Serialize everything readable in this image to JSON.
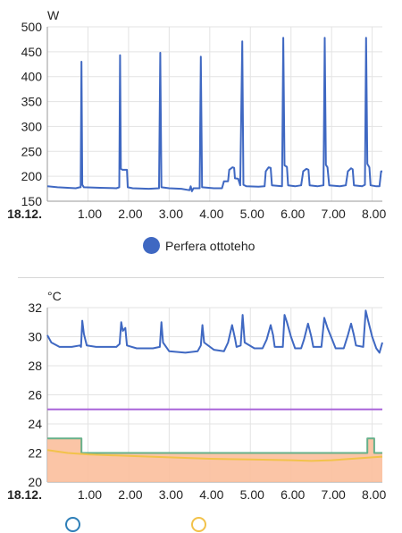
{
  "chart_data": [
    {
      "type": "line",
      "ylabel": "W",
      "ylim": [
        150,
        500
      ],
      "yticks": [
        150,
        200,
        250,
        300,
        350,
        400,
        450,
        500
      ],
      "xlim": [
        0,
        8.25
      ],
      "x_ticks": [
        {
          "x": 0,
          "label": "18.12.",
          "bold": true
        },
        {
          "x": 1,
          "label": "1.00"
        },
        {
          "x": 2,
          "label": "2.00"
        },
        {
          "x": 3,
          "label": "3.00"
        },
        {
          "x": 4,
          "label": "4.00"
        },
        {
          "x": 5,
          "label": "5.00"
        },
        {
          "x": 6,
          "label": "6.00"
        },
        {
          "x": 7,
          "label": "7.00"
        },
        {
          "x": 8,
          "label": "8.00"
        }
      ],
      "grid": true,
      "legend_position": "bottom",
      "series": [
        {
          "name": "Perfera ottoteho",
          "color": "#3f68c2",
          "points": [
            [
              0,
              180
            ],
            [
              0.25,
              178
            ],
            [
              0.5,
              177
            ],
            [
              0.7,
              176
            ],
            [
              0.8,
              178
            ],
            [
              0.82,
              178
            ],
            [
              0.84,
              430
            ],
            [
              0.86,
              183
            ],
            [
              0.9,
              178
            ],
            [
              1.3,
              177
            ],
            [
              1.7,
              176
            ],
            [
              1.77,
              178
            ],
            [
              1.79,
              443
            ],
            [
              1.81,
              215
            ],
            [
              1.85,
              213
            ],
            [
              1.96,
              213
            ],
            [
              1.98,
              178
            ],
            [
              2.1,
              176
            ],
            [
              2.5,
              175
            ],
            [
              2.75,
              176
            ],
            [
              2.78,
              448
            ],
            [
              2.81,
              178
            ],
            [
              3.0,
              176
            ],
            [
              3.3,
              175
            ],
            [
              3.5,
              172
            ],
            [
              3.53,
              180
            ],
            [
              3.56,
              170
            ],
            [
              3.6,
              176
            ],
            [
              3.75,
              176
            ],
            [
              3.78,
              440
            ],
            [
              3.81,
              178
            ],
            [
              4.1,
              176
            ],
            [
              4.3,
              176
            ],
            [
              4.35,
              190
            ],
            [
              4.45,
              190
            ],
            [
              4.48,
              213
            ],
            [
              4.56,
              218
            ],
            [
              4.6,
              217
            ],
            [
              4.62,
              196
            ],
            [
              4.7,
              195
            ],
            [
              4.75,
              182
            ],
            [
              4.8,
              471
            ],
            [
              4.83,
              183
            ],
            [
              4.9,
              180
            ],
            [
              5.2,
              179
            ],
            [
              5.35,
              180
            ],
            [
              5.38,
              210
            ],
            [
              5.45,
              218
            ],
            [
              5.5,
              217
            ],
            [
              5.53,
              182
            ],
            [
              5.78,
              180
            ],
            [
              5.81,
              478
            ],
            [
              5.84,
              222
            ],
            [
              5.9,
              219
            ],
            [
              5.93,
              182
            ],
            [
              6.1,
              180
            ],
            [
              6.25,
              182
            ],
            [
              6.3,
              210
            ],
            [
              6.38,
              215
            ],
            [
              6.43,
              213
            ],
            [
              6.46,
              182
            ],
            [
              6.65,
              180
            ],
            [
              6.8,
              182
            ],
            [
              6.83,
              478
            ],
            [
              6.86,
              223
            ],
            [
              6.9,
              218
            ],
            [
              6.94,
              182
            ],
            [
              7.2,
              180
            ],
            [
              7.35,
              182
            ],
            [
              7.4,
              210
            ],
            [
              7.48,
              216
            ],
            [
              7.52,
              214
            ],
            [
              7.55,
              182
            ],
            [
              7.75,
              180
            ],
            [
              7.82,
              183
            ],
            [
              7.85,
              478
            ],
            [
              7.88,
              225
            ],
            [
              7.93,
              218
            ],
            [
              7.96,
              182
            ],
            [
              8.1,
              180
            ],
            [
              8.18,
              180
            ],
            [
              8.22,
              210
            ],
            [
              8.25,
              210
            ]
          ]
        }
      ]
    },
    {
      "type": "line",
      "ylabel": "°C",
      "ylim": [
        20,
        32
      ],
      "yticks": [
        20,
        22,
        24,
        26,
        28,
        30,
        32
      ],
      "xlim": [
        0,
        8.25
      ],
      "x_ticks": [
        {
          "x": 0,
          "label": "18.12.",
          "bold": true
        },
        {
          "x": 1,
          "label": "1.00"
        },
        {
          "x": 2,
          "label": "2.00"
        },
        {
          "x": 3,
          "label": "3.00"
        },
        {
          "x": 4,
          "label": "4.00"
        },
        {
          "x": 5,
          "label": "5.00"
        },
        {
          "x": 6,
          "label": "6.00"
        },
        {
          "x": 7,
          "label": "7.00"
        },
        {
          "x": 8,
          "label": "8.00"
        }
      ],
      "grid": true,
      "legend_position": "bottom",
      "series": [
        {
          "color": "#3f68c2",
          "points": [
            [
              0,
              30.1
            ],
            [
              0.1,
              29.6
            ],
            [
              0.3,
              29.3
            ],
            [
              0.6,
              29.3
            ],
            [
              0.8,
              29.4
            ],
            [
              0.83,
              29.3
            ],
            [
              0.86,
              31.1
            ],
            [
              0.9,
              30.2
            ],
            [
              0.97,
              29.4
            ],
            [
              1.2,
              29.3
            ],
            [
              1.7,
              29.3
            ],
            [
              1.78,
              29.5
            ],
            [
              1.82,
              31.0
            ],
            [
              1.86,
              30.4
            ],
            [
              1.92,
              30.6
            ],
            [
              1.96,
              29.4
            ],
            [
              2.2,
              29.2
            ],
            [
              2.6,
              29.2
            ],
            [
              2.77,
              29.3
            ],
            [
              2.81,
              31.0
            ],
            [
              2.85,
              29.6
            ],
            [
              3.0,
              29.0
            ],
            [
              3.4,
              28.9
            ],
            [
              3.7,
              29.0
            ],
            [
              3.78,
              29.4
            ],
            [
              3.82,
              30.8
            ],
            [
              3.86,
              29.6
            ],
            [
              4.1,
              29.1
            ],
            [
              4.35,
              29.0
            ],
            [
              4.45,
              29.6
            ],
            [
              4.55,
              30.8
            ],
            [
              4.62,
              29.9
            ],
            [
              4.66,
              29.3
            ],
            [
              4.76,
              29.4
            ],
            [
              4.81,
              31.5
            ],
            [
              4.86,
              29.6
            ],
            [
              5.1,
              29.2
            ],
            [
              5.3,
              29.2
            ],
            [
              5.4,
              29.8
            ],
            [
              5.5,
              30.8
            ],
            [
              5.56,
              30.1
            ],
            [
              5.6,
              29.3
            ],
            [
              5.8,
              29.3
            ],
            [
              5.84,
              31.5
            ],
            [
              5.9,
              31.0
            ],
            [
              6.0,
              30.0
            ],
            [
              6.1,
              29.2
            ],
            [
              6.25,
              29.2
            ],
            [
              6.32,
              29.8
            ],
            [
              6.42,
              30.9
            ],
            [
              6.5,
              30.0
            ],
            [
              6.55,
              29.3
            ],
            [
              6.75,
              29.3
            ],
            [
              6.82,
              31.3
            ],
            [
              6.9,
              30.6
            ],
            [
              7.0,
              29.9
            ],
            [
              7.1,
              29.2
            ],
            [
              7.3,
              29.2
            ],
            [
              7.4,
              30.1
            ],
            [
              7.48,
              30.9
            ],
            [
              7.55,
              30.1
            ],
            [
              7.6,
              29.4
            ],
            [
              7.78,
              29.3
            ],
            [
              7.84,
              31.8
            ],
            [
              7.9,
              31.1
            ],
            [
              8.0,
              30.0
            ],
            [
              8.1,
              29.2
            ],
            [
              8.18,
              28.9
            ],
            [
              8.25,
              29.6
            ]
          ]
        },
        {
          "color": "#a964d9",
          "points": [
            [
              0,
              25.0
            ],
            [
              8.25,
              25.0
            ]
          ]
        },
        {
          "color": "#66b08a",
          "points": [
            [
              0,
              23.0
            ],
            [
              0.84,
              23.0
            ],
            [
              0.84,
              22.0
            ],
            [
              7.88,
              22.0
            ],
            [
              7.88,
              23.0
            ],
            [
              8.05,
              23.0
            ],
            [
              8.05,
              22.0
            ],
            [
              8.25,
              22.0
            ]
          ]
        },
        {
          "color": "#f2c24a",
          "points": [
            [
              0,
              22.2
            ],
            [
              0.5,
              22.0
            ],
            [
              1.0,
              21.9
            ],
            [
              2.0,
              21.8
            ],
            [
              3.0,
              21.7
            ],
            [
              4.0,
              21.6
            ],
            [
              5.0,
              21.55
            ],
            [
              6.0,
              21.5
            ],
            [
              6.5,
              21.45
            ],
            [
              7.0,
              21.5
            ],
            [
              7.5,
              21.6
            ],
            [
              8.0,
              21.7
            ],
            [
              8.25,
              21.75
            ]
          ]
        }
      ],
      "area_fill": {
        "color": "#fbbf9c",
        "follows_series": 2
      }
    }
  ],
  "legend2": {
    "items": [
      {
        "color": "#2e7fb8"
      },
      {
        "color": "#f2c24a"
      }
    ]
  }
}
